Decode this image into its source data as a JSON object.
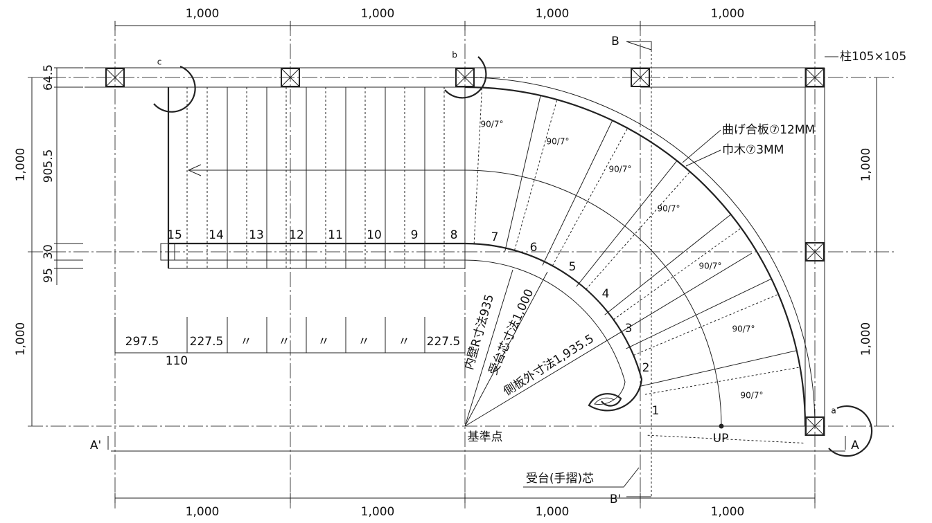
{
  "dimensions": {
    "top": [
      "1,000",
      "1,000",
      "1,000",
      "1,000"
    ],
    "bottom": [
      "1,000",
      "1,000",
      "1,000",
      "1,000"
    ],
    "left": [
      "1,000",
      "1,000"
    ],
    "left_detail": [
      "64.5",
      "905.5",
      "30",
      "95"
    ],
    "right": [
      "1,000",
      "1,000"
    ]
  },
  "section_marks": {
    "b_top": "B",
    "b_bottom": "B'",
    "a_left": "A'",
    "a_right": "A"
  },
  "callouts": {
    "column": "柱105×105",
    "plywood": "曲げ合板⑦12MM",
    "baseboard": "巾木⑦3MM",
    "handrail_center": "受台(手摺)芯"
  },
  "tread_numbers": [
    "15",
    "14",
    "13",
    "12",
    "11",
    "10",
    "9",
    "8",
    "7",
    "6",
    "5",
    "4",
    "3",
    "2",
    "1"
  ],
  "tread_angles": [
    "90/7°",
    "90/7°",
    "90/7°",
    "90/7°",
    "90/7°",
    "90/7°",
    "90/7°"
  ],
  "tread_widths": [
    "297.5",
    "227.5",
    "〃",
    "〃",
    "〃",
    "〃",
    "〃",
    "227.5"
  ],
  "offset": "110",
  "radii": [
    "内壁R寸法935",
    "受台芯寸法1,000",
    "側板外寸法1,935.5"
  ],
  "base_point": "基準点",
  "up": "UP",
  "detail_marks": [
    "a",
    "b",
    "c"
  ]
}
